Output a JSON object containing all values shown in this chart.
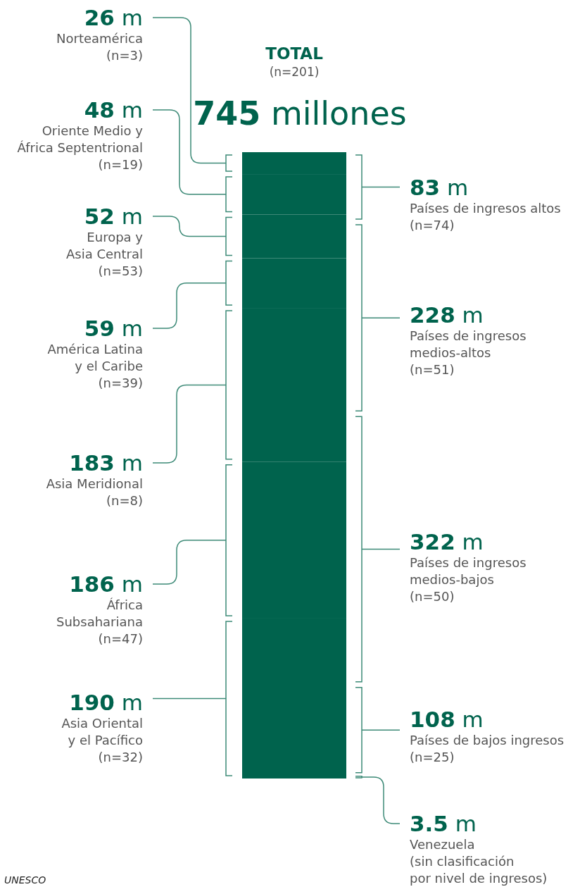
{
  "chart_data": [
    {
      "type": "other",
      "title": "TOTAL",
      "subtitle": "(n=201)",
      "annotations": [
        "745 millones",
        "UNESCO"
      ],
      "categories": [
        "Norteamérica\n(n=3)",
        "Oriente Medio y\nÁfrica Septentrional\n(n=19)",
        "Europa y\nAsia Central\n(n=53)",
        "América Latina\ny el Caribe\n(n=39)",
        "Asia Meridional\n(n=8)",
        "África\nSubsahariana\n(n=47)",
        "Asia Oriental\ny el Pacífico\n(n=32)"
      ],
      "values": [
        26,
        48,
        52,
        59,
        183,
        186,
        190
      ],
      "value_labels": [
        "26 m",
        "48 m",
        "52 m",
        "59 m",
        "183 m",
        "186 m",
        "190 m"
      ],
      "colors": [
        "#00634d",
        "#00634d",
        "#00634d",
        "#00634d",
        "#00634d",
        "#00634d",
        "#00634d"
      ]
    },
    {
      "type": "other",
      "categories": [
        "Países de ingresos altos\n(n=74)",
        "Países de ingresos\nmedios-altos\n(n=51)",
        "Países de ingresos\nmedios-bajos\n(n=50)",
        "Países de bajos ingresos\n(n=25)",
        "Venezuela\n(sin clasificación\npor nivel de ingresos)"
      ],
      "values": [
        83,
        228,
        322,
        108,
        3.5
      ],
      "value_labels": [
        "83 m",
        "228 m",
        "322 m",
        "108 m",
        "3.5 m"
      ]
    }
  ]
}
